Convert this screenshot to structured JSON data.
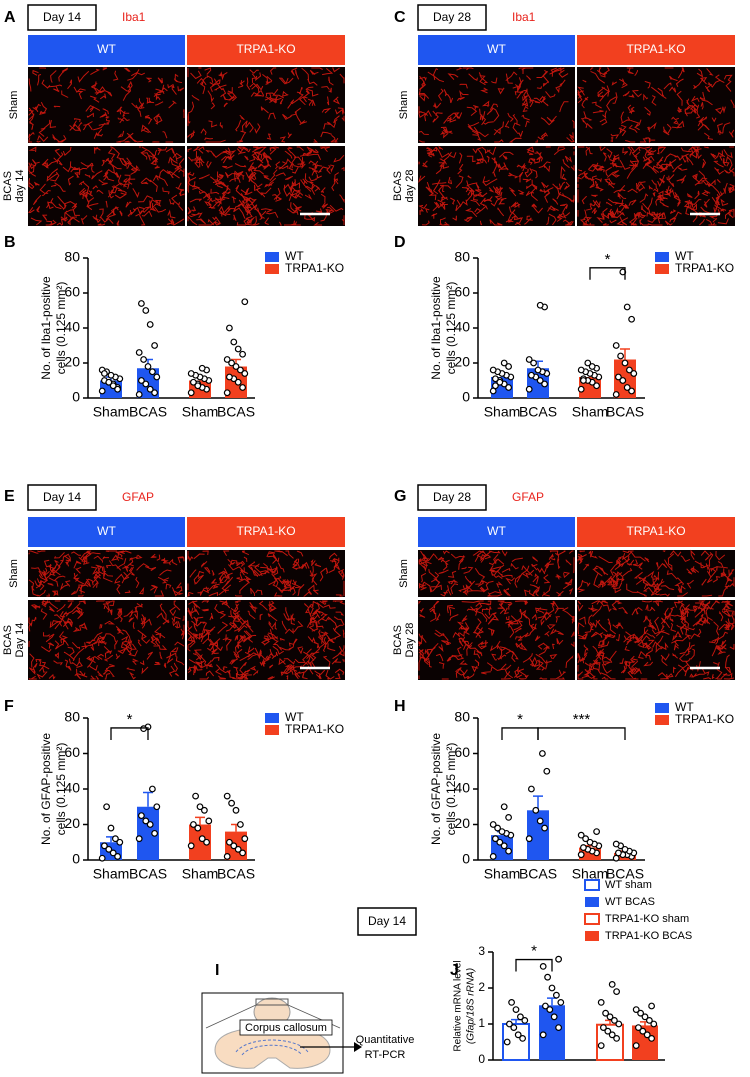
{
  "image_panels": [
    {
      "panel": "A",
      "day": "Day 14",
      "stain": "Iba1",
      "columns": [
        "WT",
        "TRPA1-KO"
      ],
      "rows": [
        [
          "Sham"
        ],
        [
          "BCAS",
          "day 14"
        ]
      ]
    },
    {
      "panel": "C",
      "day": "Day 28",
      "stain": "Iba1",
      "columns": [
        "WT",
        "TRPA1-KO"
      ],
      "rows": [
        [
          "Sham"
        ],
        [
          "BCAS",
          "day 28"
        ]
      ]
    },
    {
      "panel": "E",
      "day": "Day 14",
      "stain": "GFAP",
      "columns": [
        "WT",
        "TRPA1-KO"
      ],
      "rows": [
        [
          "Sham"
        ],
        [
          "BCAS",
          "Day 14"
        ]
      ]
    },
    {
      "panel": "G",
      "day": "Day 28",
      "stain": "GFAP",
      "columns": [
        "WT",
        "TRPA1-KO"
      ],
      "rows": [
        [
          "Sham"
        ],
        [
          "BCAS",
          "Day 28"
        ]
      ]
    }
  ],
  "chart_data": [
    {
      "type": "bar",
      "panel": "B",
      "ylabel": [
        "No. of Iba1-positive",
        "cells (0.125 mm²)"
      ],
      "categories": [
        "Sham",
        "BCAS",
        "Sham",
        "BCAS"
      ],
      "ylim": [
        0,
        80
      ],
      "yticks": [
        0,
        20,
        40,
        60,
        80
      ],
      "legend": "upper right",
      "series": [
        {
          "name": "WT",
          "color": "#1f56f0",
          "values": [
            10,
            17,
            null,
            null
          ],
          "errors": [
            2,
            5,
            null,
            null
          ],
          "points": [
            [
              4,
              6,
              8,
              9,
              10,
              11,
              12,
              13,
              15,
              16,
              5,
              7,
              9,
              14
            ],
            [
              2,
              3,
              5,
              8,
              10,
              12,
              15,
              18,
              22,
              26,
              30,
              42,
              50,
              54
            ],
            null,
            null
          ]
        },
        {
          "name": "TRPA1-KO",
          "color": "#f2401f",
          "values": [
            null,
            null,
            10,
            18
          ],
          "errors": [
            null,
            null,
            2,
            4
          ],
          "points": [
            null,
            null,
            [
              3,
              5,
              6,
              8,
              9,
              10,
              11,
              12,
              13,
              14,
              16,
              17,
              7
            ],
            [
              3,
              6,
              9,
              11,
              12,
              14,
              16,
              18,
              20,
              22,
              25,
              28,
              32,
              40,
              55
            ]
          ]
        }
      ],
      "annotations": []
    },
    {
      "type": "bar",
      "panel": "D",
      "ylabel": [
        "No. of Iba1-positive",
        "cells (0.125 mm²)"
      ],
      "categories": [
        "Sham",
        "BCAS",
        "Sham",
        "BCAS"
      ],
      "ylim": [
        0,
        80
      ],
      "yticks": [
        0,
        20,
        40,
        60,
        80
      ],
      "legend": "upper right",
      "series": [
        {
          "name": "WT",
          "color": "#1f56f0",
          "values": [
            12,
            17,
            null,
            null
          ],
          "errors": [
            2,
            4,
            null,
            null
          ],
          "points": [
            [
              4,
              6,
              8,
              10,
              11,
              12,
              13,
              14,
              15,
              16,
              18,
              20,
              9,
              7
            ],
            [
              5,
              8,
              10,
              12,
              13,
              14,
              15,
              16,
              20,
              22,
              52,
              53
            ],
            null,
            null
          ]
        },
        {
          "name": "TRPA1-KO",
          "color": "#f2401f",
          "values": [
            null,
            null,
            12,
            22
          ],
          "errors": [
            null,
            null,
            2,
            6
          ],
          "points": [
            null,
            null,
            [
              5,
              7,
              9,
              10,
              11,
              12,
              13,
              14,
              15,
              16,
              17,
              18,
              20,
              10
            ],
            [
              2,
              4,
              6,
              10,
              12,
              14,
              16,
              20,
              24,
              30,
              45,
              52,
              72
            ]
          ]
        }
      ],
      "annotations": [
        {
          "label": "*",
          "between": [
            2,
            3
          ]
        }
      ]
    },
    {
      "type": "bar",
      "panel": "F",
      "ylabel": [
        "No. of GFAP-positive",
        "cells (0.125 mm²)"
      ],
      "categories": [
        "Sham",
        "BCAS",
        "Sham",
        "BCAS"
      ],
      "ylim": [
        0,
        80
      ],
      "yticks": [
        0,
        20,
        40,
        60,
        80
      ],
      "legend": "upper right",
      "series": [
        {
          "name": "WT",
          "color": "#1f56f0",
          "values": [
            10,
            30,
            null,
            null
          ],
          "errors": [
            3,
            8,
            null,
            null
          ],
          "points": [
            [
              1,
              2,
              4,
              6,
              8,
              10,
              12,
              18,
              30
            ],
            [
              12,
              15,
              20,
              22,
              25,
              30,
              40,
              75,
              74
            ],
            null,
            null
          ]
        },
        {
          "name": "TRPA1-KO",
          "color": "#f2401f",
          "values": [
            null,
            null,
            20,
            16
          ],
          "errors": [
            null,
            null,
            4,
            4
          ],
          "points": [
            null,
            null,
            [
              8,
              10,
              12,
              18,
              20,
              22,
              28,
              30,
              36
            ],
            [
              2,
              4,
              6,
              8,
              10,
              12,
              20,
              28,
              32,
              36
            ]
          ]
        }
      ],
      "annotations": [
        {
          "label": "*",
          "between": [
            0,
            1
          ]
        }
      ]
    },
    {
      "type": "bar",
      "panel": "H",
      "ylabel": [
        "No. of GFAP-positive",
        "cells (0.125 mm²)"
      ],
      "categories": [
        "Sham",
        "BCAS",
        "Sham",
        "BCAS"
      ],
      "ylim": [
        0,
        80
      ],
      "yticks": [
        0,
        20,
        40,
        60,
        80
      ],
      "legend": "upper right",
      "series": [
        {
          "name": "WT",
          "color": "#1f56f0",
          "values": [
            14,
            28,
            null,
            null
          ],
          "errors": [
            2,
            8,
            null,
            null
          ],
          "points": [
            [
              2,
              5,
              8,
              10,
              12,
              14,
              15,
              16,
              18,
              20,
              24,
              30
            ],
            [
              12,
              18,
              22,
              28,
              40,
              50,
              60
            ],
            null,
            null
          ]
        },
        {
          "name": "TRPA1-KO",
          "color": "#f2401f",
          "values": [
            null,
            null,
            7,
            4
          ],
          "errors": [
            null,
            null,
            1,
            1
          ],
          "points": [
            null,
            null,
            [
              3,
              4,
              5,
              6,
              7,
              8,
              9,
              10,
              12,
              14,
              16
            ],
            [
              1,
              2,
              3,
              3,
              4,
              4,
              5,
              6,
              8,
              9
            ]
          ]
        }
      ],
      "annotations": [
        {
          "label": "*",
          "between": [
            0,
            1
          ]
        },
        {
          "label": "***",
          "between": [
            1,
            3
          ]
        }
      ]
    },
    {
      "type": "bar",
      "panel": "J",
      "ylabel": [
        "Relative mRNA level",
        "(Gfap/18S rRNA)"
      ],
      "categories": [
        null,
        null,
        null,
        null
      ],
      "ylim": [
        0,
        3
      ],
      "yticks": [
        0,
        1,
        2,
        3
      ],
      "legend": "upper right",
      "series": [
        {
          "name": "WT sham",
          "color": "#1f56f0",
          "fill": false,
          "values": [
            1.0,
            null,
            null,
            null
          ],
          "errors": [
            0.12,
            null,
            null,
            null
          ],
          "points": [
            [
              0.5,
              0.6,
              0.7,
              0.9,
              1.0,
              1.1,
              1.2,
              1.4,
              1.6
            ],
            null,
            null,
            null
          ]
        },
        {
          "name": "WT BCAS",
          "color": "#1f56f0",
          "fill": true,
          "values": [
            null,
            1.52,
            null,
            null
          ],
          "errors": [
            null,
            0.2,
            null,
            null
          ],
          "points": [
            null,
            [
              0.7,
              0.9,
              1.2,
              1.4,
              1.5,
              1.6,
              1.8,
              2.0,
              2.3,
              2.6,
              2.8
            ],
            null,
            null
          ]
        },
        {
          "name": "TRPA1-KO sham",
          "color": "#f2401f",
          "fill": false,
          "values": [
            null,
            null,
            0.98,
            null
          ],
          "errors": [
            null,
            null,
            0.12,
            null
          ],
          "points": [
            null,
            null,
            [
              0.4,
              0.6,
              0.7,
              0.8,
              0.9,
              1.0,
              1.1,
              1.2,
              1.3,
              1.6,
              1.9,
              2.1
            ],
            null
          ]
        },
        {
          "name": "TRPA1-KO BCAS",
          "color": "#f2401f",
          "fill": true,
          "values": [
            null,
            null,
            null,
            0.96
          ],
          "errors": [
            null,
            null,
            null,
            0.1
          ],
          "points": [
            null,
            null,
            null,
            [
              0.4,
              0.6,
              0.7,
              0.8,
              0.9,
              1.0,
              1.1,
              1.2,
              1.3,
              1.4,
              1.5
            ]
          ]
        }
      ],
      "annotations": [
        {
          "label": "*",
          "between": [
            0,
            1
          ]
        }
      ]
    }
  ],
  "diagram": {
    "panel": "I",
    "day": "Day 14",
    "region": "Corpus callosum",
    "method": [
      "Quantitative",
      "RT-PCR"
    ]
  }
}
